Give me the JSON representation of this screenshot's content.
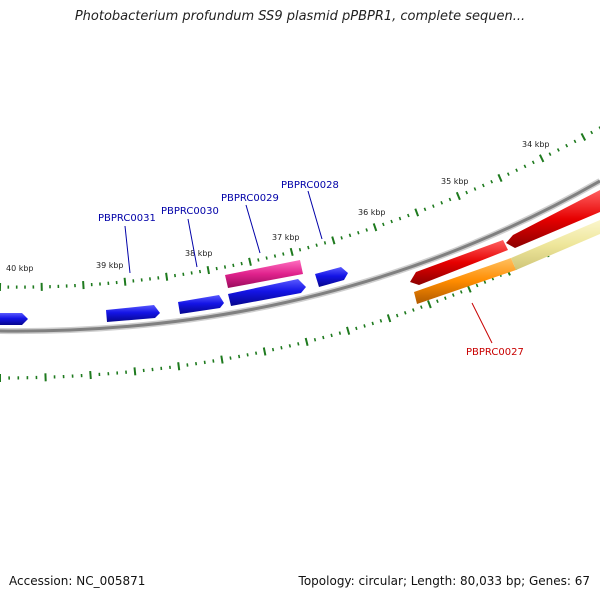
{
  "title": "Photobacterium profundum SS9 plasmid pPBPR1, complete sequen...",
  "footer": {
    "accession": "Accession: NC_005871",
    "topology": "Topology: circular; Length: 80,033 bp; Genes: 67"
  },
  "colors": {
    "backbone": "#888888",
    "tick": "#1e7a1e",
    "forward_cds": "#1414e6",
    "forward_other": "#e0228c",
    "reverse_cds": "#e60000",
    "reverse_other": "#ff8c00",
    "reverse_faint": "#eee69a",
    "label_forward": "#0000a8",
    "label_reverse": "#c80000"
  },
  "ticks": [
    {
      "label": "34 kbp"
    },
    {
      "label": "35 kbp"
    },
    {
      "label": "36 kbp"
    },
    {
      "label": "37 kbp"
    },
    {
      "label": "38 kbp"
    },
    {
      "label": "39 kbp"
    },
    {
      "label": "40 kbp"
    }
  ],
  "gene_labels": [
    {
      "name": "PBPRC0031"
    },
    {
      "name": "PBPRC0030"
    },
    {
      "name": "PBPRC0029"
    },
    {
      "name": "PBPRC0028"
    },
    {
      "name": "PBPRC0027"
    }
  ]
}
